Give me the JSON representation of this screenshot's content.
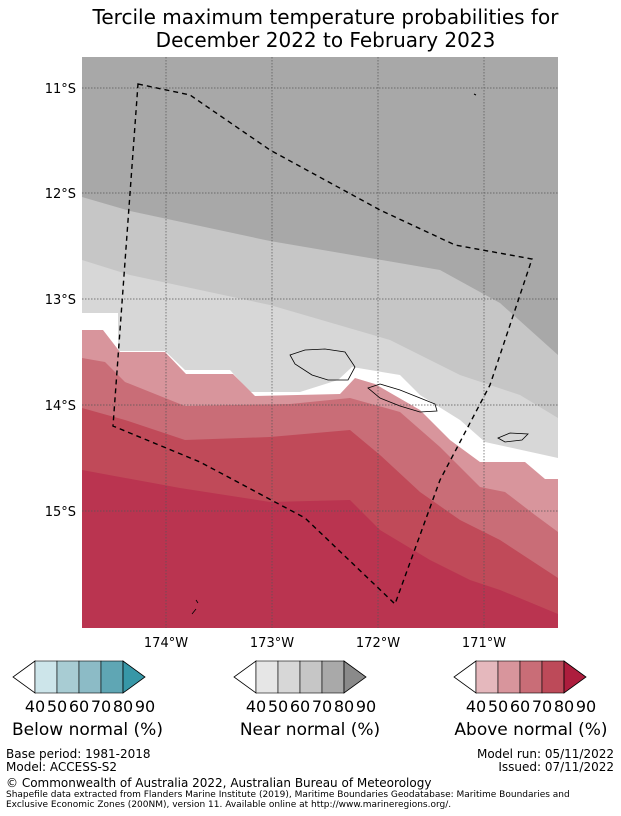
{
  "title_line1": "Tercile maximum temperature probabilities for",
  "title_line2": "December 2022 to February 2023",
  "map": {
    "lat_labels": [
      "11°S",
      "12°S",
      "13°S",
      "14°S",
      "15°S"
    ],
    "lon_labels": [
      "174°W",
      "173°W",
      "172°W",
      "171°W"
    ],
    "lat_values": [
      -11,
      -12,
      -13,
      -14,
      -15
    ],
    "lon_values": [
      -174,
      -173,
      -172,
      -171
    ]
  },
  "colorbars": [
    {
      "label": "Below normal (%)",
      "ticks": [
        "40",
        "50",
        "60",
        "70",
        "80",
        "90"
      ],
      "colors": [
        "#ffffff",
        "#cde5ea",
        "#a8ccd3",
        "#8cbbc6",
        "#5fa6b4",
        "#3797a7"
      ]
    },
    {
      "label": "Near normal (%)",
      "ticks": [
        "40",
        "50",
        "60",
        "70",
        "80",
        "90"
      ],
      "colors": [
        "#ffffff",
        "#e6e6e6",
        "#d7d7d7",
        "#c6c6c6",
        "#a9a9a9",
        "#8a8a8a"
      ]
    },
    {
      "label": "Above normal (%)",
      "ticks": [
        "40",
        "50",
        "60",
        "70",
        "80",
        "90"
      ],
      "colors": [
        "#ffffff",
        "#e5b8bd",
        "#d8959c",
        "#c96d77",
        "#bd4a59",
        "#ad1d3d"
      ]
    }
  ],
  "footer": {
    "base_period": "Base period: 1981-2018",
    "model": "Model: ACCESS-S2",
    "model_run": "Model run: 05/11/2022",
    "issued": "Issued: 07/11/2022",
    "copyright": "© Commonwealth of Australia 2022, Australian Bureau of Meteorology",
    "shapefile_line1": "Shapefile data extracted from Flanders Marine Institute (2019), Maritime Boundaries Geodatabase: Maritime Boundaries and",
    "shapefile_line2": "Exclusive Economic Zones (200NM), version 11. Available online at http://www.marineregions.org/."
  }
}
